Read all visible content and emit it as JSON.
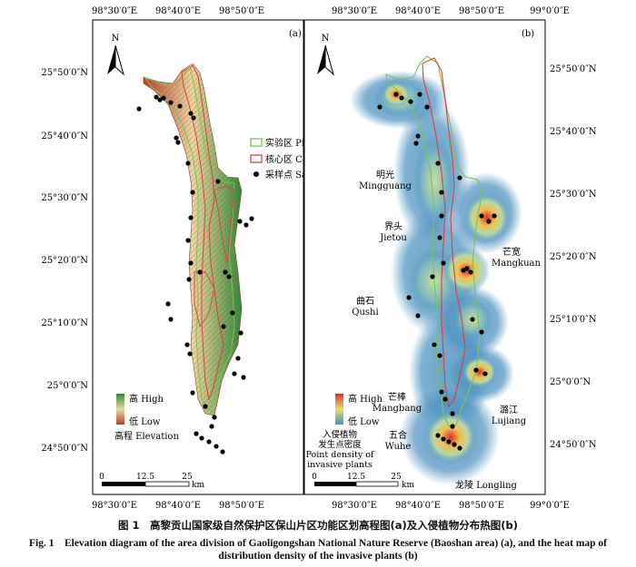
{
  "panel_a": {
    "label": "(a)",
    "north": "N",
    "top_ticks": [
      "98°30′0″E",
      "98°40′0″E",
      "98°50′0″E"
    ],
    "bottom_ticks": [
      "98°30′0″E",
      "98°40′0″E",
      "98°50′0″E"
    ],
    "left_ticks": [
      "25°50′0″N",
      "25°40′0″N",
      "25°30′0″N",
      "25°20′0″N",
      "25°10′0″N",
      "25°0′0″N",
      "24°50′0″N"
    ],
    "legend": {
      "high": "高 High",
      "low": "低 Low",
      "title": "高程 Elevation"
    },
    "scale": {
      "labels": [
        "0",
        "12.5",
        "25"
      ],
      "unit": "km"
    },
    "colors": {
      "high": "#2e8b3a",
      "mid": "#e8d9a0",
      "low": "#b84030"
    }
  },
  "panel_b": {
    "label": "(b)",
    "north": "N",
    "top_ticks": [
      "98°30′0″E",
      "98°40′0″E",
      "98°50′0″E",
      "99°0′0″E"
    ],
    "bottom_ticks": [
      "98°30′0″E",
      "98°40′0″E",
      "98°50′0″E",
      "99°0′0″E"
    ],
    "right_ticks": [
      "25°50′0″N",
      "25°40′0″N",
      "25°30′0″N",
      "25°20′0″N",
      "25°10′0″N",
      "25°0′0″N",
      "24°50′0″N"
    ],
    "places": [
      {
        "zh": "明光",
        "en": "Mingguang"
      },
      {
        "zh": "界头",
        "en": "Jietou"
      },
      {
        "zh": "曲石",
        "en": "Qushi"
      },
      {
        "zh": "芒棒",
        "en": "Mangbang"
      },
      {
        "zh": "五合",
        "en": "Wuhe"
      },
      {
        "zh": "芒宽",
        "en": "Mangkuan"
      },
      {
        "zh": "潞江",
        "en": "Lujiang"
      }
    ],
    "longling": "龙陵 Longling",
    "legend": {
      "high": "高 High",
      "low": "低 Low",
      "title_zh_1": "入侵植物",
      "title_zh_2": "发生点密度",
      "title_en_1": "Point density of",
      "title_en_2": "invasive plants"
    },
    "scale": {
      "labels": [
        "0",
        "12.5",
        "25"
      ],
      "unit": "km"
    },
    "colors": {
      "low": "#4a8fbf",
      "mid": "#b8d8a8",
      "high": "#d8302a"
    }
  },
  "zone_legend": {
    "pilot": "实验区 Pilot zone",
    "core": "核心区 Core zone",
    "sampling": "采样点 Sampling point",
    "colors": {
      "pilot": "#7ac25a",
      "core": "#d94040",
      "point": "#000000"
    }
  },
  "caption": {
    "zh": "图 1　高黎贡山国家级自然保护区保山片区功能区划高程图(a)及入侵植物分布热图(b)",
    "en": "Fig. 1　Elevation diagram of the area division of Gaoligongshan National Nature Reserve (Baoshan area) (a), and the heat map of distribution density of the invasive plants (b)"
  }
}
